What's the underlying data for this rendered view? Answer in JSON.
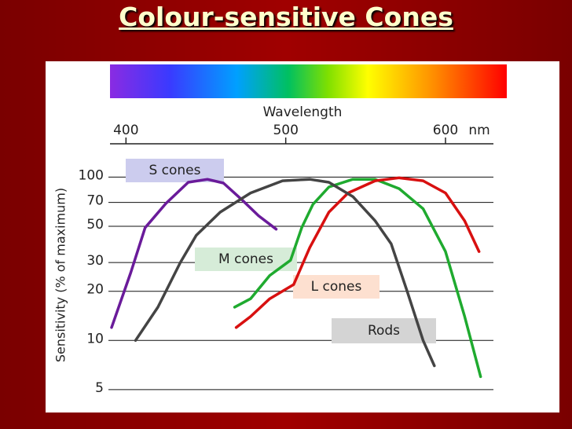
{
  "chart_data": {
    "type": "line",
    "title": "Colour-sensitive Cones",
    "x_label": "Wavelength",
    "x_unit": "nm",
    "y_label": "Sensitivity (% of maximum)",
    "xlim": [
      390,
      630
    ],
    "xticks": [
      400,
      500,
      600
    ],
    "ylim": [
      4,
      160
    ],
    "yticks": [
      5,
      10,
      20,
      30,
      50,
      70,
      100
    ],
    "log_y": true,
    "grid": true,
    "series": [
      {
        "name": "S cones",
        "color": "#6a1b9a",
        "x": [
          391,
          403,
          412,
          425,
          439,
          451,
          461,
          473,
          483,
          494
        ],
        "values": [
          12,
          26,
          49,
          69,
          93,
          97,
          92,
          72,
          58,
          48
        ]
      },
      {
        "name": "M cones",
        "color": "#1faa2f",
        "x": [
          468,
          478,
          490,
          503,
          510,
          517,
          527,
          542,
          556,
          571,
          586,
          600,
          612,
          622
        ],
        "values": [
          16,
          18,
          25,
          31,
          49,
          68,
          87,
          97,
          97,
          85,
          64,
          35,
          14,
          6
        ]
      },
      {
        "name": "L cones",
        "color": "#d81010",
        "x": [
          469,
          478,
          490,
          505,
          515,
          527,
          539,
          556,
          571,
          586,
          600,
          612,
          621
        ],
        "values": [
          12,
          14,
          18,
          22,
          37,
          61,
          80,
          95,
          99,
          95,
          80,
          54,
          35
        ]
      },
      {
        "name": "Rods",
        "color": "#444444",
        "x": [
          406,
          420,
          434,
          444,
          459,
          478,
          498,
          515,
          527,
          542,
          556,
          566,
          576,
          586,
          593
        ],
        "values": [
          10,
          16,
          30,
          44,
          61,
          80,
          95,
          97,
          93,
          76,
          54,
          39,
          20,
          10,
          7
        ]
      }
    ]
  }
}
